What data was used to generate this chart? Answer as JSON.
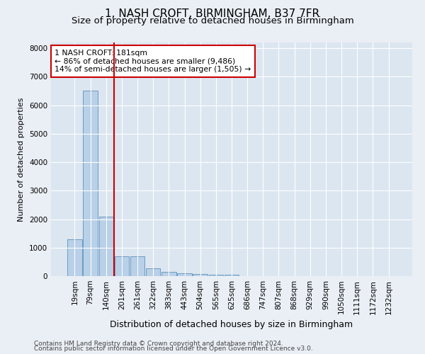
{
  "title": "1, NASH CROFT, BIRMINGHAM, B37 7FR",
  "subtitle": "Size of property relative to detached houses in Birmingham",
  "xlabel": "Distribution of detached houses by size in Birmingham",
  "ylabel": "Number of detached properties",
  "footnote1": "Contains HM Land Registry data © Crown copyright and database right 2024.",
  "footnote2": "Contains public sector information licensed under the Open Government Licence v3.0.",
  "bar_labels": [
    "19sqm",
    "79sqm",
    "140sqm",
    "201sqm",
    "261sqm",
    "322sqm",
    "383sqm",
    "443sqm",
    "504sqm",
    "565sqm",
    "625sqm",
    "686sqm",
    "747sqm",
    "807sqm",
    "868sqm",
    "929sqm",
    "990sqm",
    "1050sqm",
    "1111sqm",
    "1172sqm",
    "1232sqm"
  ],
  "bar_values": [
    1300,
    6500,
    2080,
    690,
    690,
    270,
    155,
    110,
    75,
    60,
    60,
    0,
    0,
    0,
    0,
    0,
    0,
    0,
    0,
    0,
    0
  ],
  "bar_color": "#b8d0e8",
  "bar_edge_color": "#6090bb",
  "vline_color": "#cc0000",
  "vline_pos": 2.5,
  "annotation_text": "1 NASH CROFT: 181sqm\n← 86% of detached houses are smaller (9,486)\n14% of semi-detached houses are larger (1,505) →",
  "annotation_box_color": "#ffffff",
  "annotation_box_edge": "#cc0000",
  "ylim": [
    0,
    8200
  ],
  "yticks": [
    0,
    1000,
    2000,
    3000,
    4000,
    5000,
    6000,
    7000,
    8000
  ],
  "bg_color": "#eaeff5",
  "plot_bg_color": "#dce6f0",
  "title_fontsize": 11,
  "subtitle_fontsize": 9.5,
  "ylabel_fontsize": 8,
  "xlabel_fontsize": 9,
  "tick_fontsize": 7.5,
  "footnote_fontsize": 6.5
}
